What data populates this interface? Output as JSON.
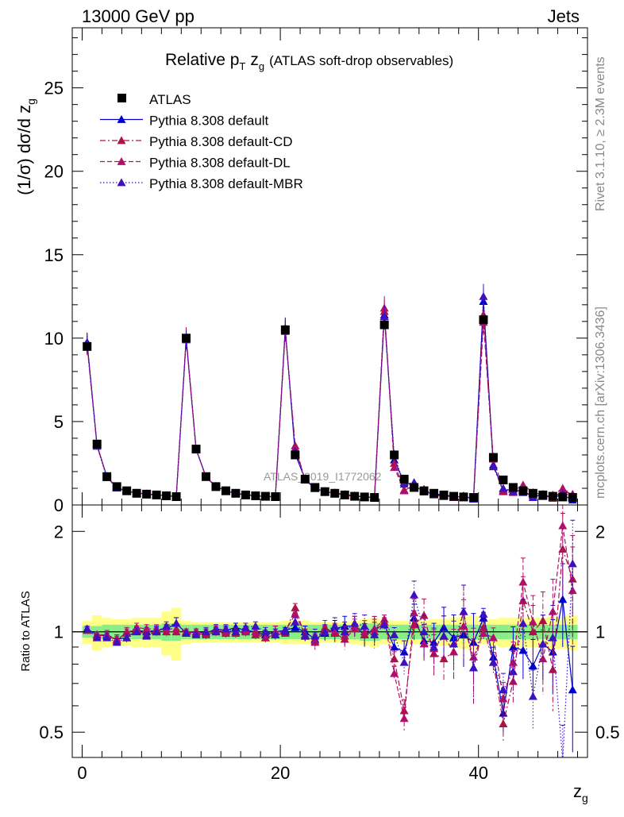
{
  "header": {
    "energy": "13000 GeV pp",
    "category": "Jets"
  },
  "side": {
    "rivet": "Rivet 3.1.10, ≥ 2.3M events",
    "mcplots": "mcplots.cern.ch [arXiv:1306.3436]"
  },
  "chart_data": [
    {
      "type": "scatter",
      "title_main": "Relative p",
      "title_sub": "T",
      "title_var": "z",
      "title_var_sub": "g",
      "title_rest": "(ATLAS soft-drop observables)",
      "ylabel": "(1/σ) dσ/d z",
      "ylabel_sub": "g",
      "watermark": "ATLAS_2019_I1772062",
      "xlim": [
        -1,
        51
      ],
      "ylim": [
        0,
        28.6
      ],
      "yticks": [
        0,
        5,
        10,
        15,
        20,
        25
      ],
      "colors": {
        "ATLAS": "#000000",
        "default": "#0000cc",
        "default-CD": "#b0104a",
        "default-DL": "#b0106a",
        "default-MBR": "#3d10c0"
      },
      "x": [
        0.5,
        1.5,
        2.5,
        3.5,
        4.5,
        5.5,
        6.5,
        7.5,
        8.5,
        9.5,
        10.5,
        11.5,
        12.5,
        13.5,
        14.5,
        15.5,
        16.5,
        17.5,
        18.5,
        19.5,
        20.5,
        21.5,
        22.5,
        23.5,
        24.5,
        25.5,
        26.5,
        27.5,
        28.5,
        29.5,
        30.5,
        31.5,
        32.5,
        33.5,
        34.5,
        35.5,
        36.5,
        37.5,
        38.5,
        39.5,
        40.5,
        41.5,
        42.5,
        43.5,
        44.5,
        45.5,
        46.5,
        47.5,
        48.5,
        49.5
      ],
      "series": [
        {
          "name": "ATLAS",
          "style": "marker-square",
          "values": [
            9.5,
            3.65,
            1.7,
            1.1,
            0.85,
            0.7,
            0.65,
            0.6,
            0.55,
            0.5,
            10.0,
            3.35,
            1.7,
            1.1,
            0.85,
            0.7,
            0.6,
            0.55,
            0.52,
            0.5,
            10.5,
            3.0,
            1.55,
            1.05,
            0.8,
            0.7,
            0.6,
            0.52,
            0.48,
            0.45,
            10.8,
            3.0,
            1.55,
            1.05,
            0.85,
            0.7,
            0.6,
            0.52,
            0.48,
            0.45,
            11.1,
            2.85,
            1.5,
            1.05,
            0.85,
            0.7,
            0.6,
            0.52,
            0.48,
            0.45
          ]
        },
        {
          "name": "Pythia 8.308 default",
          "style": "solid",
          "values": [
            9.75,
            3.6,
            1.68,
            1.05,
            0.83,
            0.72,
            0.66,
            0.62,
            0.56,
            0.52,
            9.95,
            3.35,
            1.68,
            1.12,
            0.86,
            0.71,
            0.61,
            0.55,
            0.51,
            0.5,
            10.6,
            3.05,
            1.55,
            1.0,
            0.79,
            0.72,
            0.63,
            0.54,
            0.47,
            0.46,
            11.4,
            2.7,
            1.35,
            1.15,
            0.8,
            0.65,
            0.62,
            0.5,
            0.47,
            0.42,
            12.2,
            2.4,
            0.85,
            0.95,
            0.75,
            0.55,
            0.55,
            0.45,
            0.6,
            0.3
          ]
        },
        {
          "name": "Pythia 8.308 default-CD",
          "style": "dashdot",
          "values": [
            9.55,
            3.55,
            1.66,
            1.03,
            0.85,
            0.71,
            0.64,
            0.6,
            0.55,
            0.5,
            10.05,
            3.33,
            1.66,
            1.1,
            0.84,
            0.69,
            0.6,
            0.54,
            0.5,
            0.49,
            10.4,
            3.55,
            1.5,
            0.98,
            0.82,
            0.69,
            0.57,
            0.53,
            0.47,
            0.45,
            11.6,
            2.5,
            0.9,
            1.1,
            0.95,
            0.6,
            0.5,
            0.45,
            0.55,
            0.35,
            11.4,
            2.3,
            0.8,
            0.75,
            1.05,
            0.7,
            0.65,
            0.4,
            0.85,
            0.65
          ]
        },
        {
          "name": "Pythia 8.308 default-DL",
          "style": "dash",
          "values": [
            9.6,
            3.58,
            1.67,
            1.05,
            0.84,
            0.72,
            0.66,
            0.61,
            0.56,
            0.51,
            10.0,
            3.36,
            1.68,
            1.11,
            0.85,
            0.7,
            0.6,
            0.55,
            0.5,
            0.5,
            10.45,
            3.4,
            1.52,
            0.99,
            0.8,
            0.7,
            0.58,
            0.54,
            0.48,
            0.46,
            11.8,
            2.25,
            0.85,
            1.2,
            0.78,
            0.62,
            0.58,
            0.45,
            0.5,
            0.38,
            10.95,
            2.75,
            0.95,
            0.85,
            1.2,
            0.75,
            0.5,
            0.6,
            1.0,
            0.6
          ]
        },
        {
          "name": "Pythia 8.308 default-MBR",
          "style": "dotted",
          "values": [
            9.7,
            3.52,
            1.64,
            1.02,
            0.82,
            0.7,
            0.63,
            0.6,
            0.57,
            0.53,
            9.9,
            3.3,
            1.7,
            1.1,
            0.87,
            0.7,
            0.62,
            0.57,
            0.52,
            0.49,
            10.5,
            3.2,
            1.5,
            1.02,
            0.8,
            0.73,
            0.6,
            0.55,
            0.5,
            0.44,
            11.3,
            2.95,
            1.25,
            1.35,
            0.85,
            0.63,
            0.58,
            0.48,
            0.55,
            0.35,
            12.5,
            2.3,
            1.0,
            0.8,
            0.9,
            0.45,
            0.55,
            0.5,
            0.7,
            0.55
          ]
        }
      ],
      "legend": [
        "ATLAS",
        "Pythia 8.308 default",
        "Pythia 8.308 default-CD",
        "Pythia 8.308 default-DL",
        "Pythia 8.308 default-MBR"
      ],
      "legend_position": "top-left"
    },
    {
      "type": "scatter",
      "ylabel": "Ratio to ATLAS",
      "xlabel": "z",
      "xlabel_sub": "g",
      "scale": "log",
      "ylim": [
        0.42,
        2.4
      ],
      "yticks": [
        0.5,
        1,
        2
      ],
      "xticks": [
        0,
        20,
        40
      ],
      "band_inner": [
        0.04,
        0.04,
        0.05,
        0.05,
        0.05,
        0.05,
        0.05,
        0.05,
        0.06,
        0.06,
        0.05,
        0.05,
        0.05,
        0.05,
        0.05,
        0.05,
        0.05,
        0.05,
        0.05,
        0.05,
        0.05,
        0.05,
        0.05,
        0.05,
        0.05,
        0.05,
        0.05,
        0.05,
        0.06,
        0.06,
        0.05,
        0.05,
        0.05,
        0.05,
        0.05,
        0.05,
        0.05,
        0.05,
        0.05,
        0.05,
        0.05,
        0.05,
        0.05,
        0.05,
        0.05,
        0.05,
        0.05,
        0.05,
        0.05,
        0.05
      ],
      "band_outer": [
        0.08,
        0.12,
        0.1,
        0.09,
        0.09,
        0.1,
        0.1,
        0.1,
        0.15,
        0.18,
        0.08,
        0.07,
        0.07,
        0.07,
        0.07,
        0.07,
        0.07,
        0.07,
        0.07,
        0.07,
        0.08,
        0.08,
        0.08,
        0.07,
        0.07,
        0.07,
        0.07,
        0.08,
        0.09,
        0.1,
        0.08,
        0.08,
        0.08,
        0.08,
        0.08,
        0.09,
        0.09,
        0.1,
        0.11,
        0.12,
        0.08,
        0.09,
        0.1,
        0.1,
        0.1,
        0.1,
        0.1,
        0.11,
        0.11,
        0.12
      ],
      "ratios": [
        {
          "name": "Pythia 8.308 default",
          "values": [
            1.02,
            0.98,
            0.97,
            0.95,
            0.96,
            1.01,
            1.0,
            1.01,
            1.02,
            1.06,
            0.99,
            1.0,
            0.99,
            1.02,
            1.01,
            1.03,
            1.01,
            1.0,
            0.98,
            1.0,
            1.01,
            1.03,
            1.0,
            0.95,
            0.99,
            1.02,
            1.04,
            1.04,
            0.98,
            1.02,
            1.05,
            0.9,
            0.87,
            1.1,
            0.94,
            0.93,
            1.03,
            0.96,
            0.98,
            0.93,
            1.1,
            0.84,
            0.57,
            0.9,
            0.88,
            0.79,
            0.92,
            0.87,
            1.25,
            0.67
          ],
          "errors": [
            0.02,
            0.02,
            0.03,
            0.03,
            0.03,
            0.03,
            0.03,
            0.03,
            0.03,
            0.04,
            0.02,
            0.02,
            0.03,
            0.03,
            0.03,
            0.03,
            0.03,
            0.03,
            0.03,
            0.04,
            0.02,
            0.03,
            0.04,
            0.05,
            0.05,
            0.06,
            0.07,
            0.07,
            0.08,
            0.09,
            0.03,
            0.05,
            0.08,
            0.1,
            0.12,
            0.14,
            0.15,
            0.17,
            0.2,
            0.22,
            0.04,
            0.07,
            0.12,
            0.15,
            0.18,
            0.2,
            0.22,
            0.25,
            0.28,
            0.35
          ]
        },
        {
          "name": "Pythia 8.308 default-CD",
          "values": [
            1.01,
            0.97,
            0.98,
            0.94,
            1.0,
            1.01,
            0.98,
            1.0,
            1.0,
            1.0,
            1.0,
            0.99,
            0.98,
            1.0,
            0.99,
            0.99,
            1.0,
            0.98,
            0.96,
            0.98,
            0.99,
            1.18,
            0.97,
            0.93,
            1.03,
            0.99,
            0.95,
            1.02,
            0.98,
            1.0,
            1.07,
            0.83,
            0.58,
            1.05,
            1.12,
            0.86,
            0.83,
            0.87,
            1.15,
            0.78,
            1.03,
            0.81,
            0.53,
            0.71,
            1.24,
            1.0,
            1.08,
            0.77,
            1.77,
            1.44
          ],
          "errors": [
            0.02,
            0.02,
            0.03,
            0.03,
            0.03,
            0.03,
            0.03,
            0.03,
            0.03,
            0.04,
            0.02,
            0.02,
            0.03,
            0.03,
            0.03,
            0.03,
            0.03,
            0.03,
            0.03,
            0.04,
            0.02,
            0.03,
            0.04,
            0.05,
            0.05,
            0.06,
            0.07,
            0.07,
            0.08,
            0.09,
            0.03,
            0.05,
            0.08,
            0.1,
            0.12,
            0.14,
            0.15,
            0.17,
            0.2,
            0.22,
            0.04,
            0.07,
            0.12,
            0.15,
            0.18,
            0.2,
            0.22,
            0.25,
            0.28,
            0.35
          ]
        },
        {
          "name": "Pythia 8.308 default-DL",
          "values": [
            1.01,
            0.98,
            0.98,
            0.95,
            0.99,
            1.03,
            1.02,
            1.02,
            1.02,
            1.02,
            1.0,
            1.0,
            0.99,
            1.01,
            1.0,
            1.0,
            1.0,
            1.0,
            0.96,
            1.0,
            1.0,
            1.13,
            0.98,
            0.94,
            1.0,
            1.0,
            0.97,
            1.04,
            1.0,
            1.02,
            1.09,
            0.75,
            0.55,
            1.14,
            0.92,
            0.89,
            0.97,
            0.87,
            1.04,
            0.84,
            0.99,
            0.96,
            0.63,
            0.81,
            1.41,
            1.07,
            0.83,
            1.15,
            2.08,
            1.33
          ],
          "errors": [
            0.02,
            0.02,
            0.03,
            0.03,
            0.03,
            0.03,
            0.03,
            0.03,
            0.03,
            0.04,
            0.02,
            0.02,
            0.03,
            0.03,
            0.03,
            0.03,
            0.03,
            0.03,
            0.03,
            0.04,
            0.02,
            0.03,
            0.04,
            0.05,
            0.05,
            0.06,
            0.07,
            0.07,
            0.08,
            0.09,
            0.03,
            0.05,
            0.08,
            0.1,
            0.12,
            0.14,
            0.15,
            0.17,
            0.2,
            0.22,
            0.04,
            0.07,
            0.12,
            0.15,
            0.18,
            0.2,
            0.22,
            0.25,
            0.28,
            0.35
          ]
        },
        {
          "name": "Pythia 8.308 default-MBR",
          "values": [
            1.02,
            0.96,
            0.96,
            0.93,
            0.96,
            1.0,
            0.97,
            1.0,
            1.04,
            1.06,
            0.99,
            0.98,
            1.0,
            1.0,
            1.02,
            1.0,
            1.03,
            1.04,
            1.0,
            0.98,
            1.0,
            1.07,
            0.97,
            0.97,
            1.0,
            1.04,
            1.0,
            1.06,
            1.04,
            0.98,
            1.05,
            0.98,
            0.81,
            1.29,
            1.0,
            0.9,
            0.97,
            0.92,
            1.15,
            0.78,
            1.13,
            0.81,
            0.67,
            0.76,
            1.06,
            0.64,
            0.92,
            0.96,
            0.41,
            1.6
          ],
          "errors": [
            0.02,
            0.02,
            0.03,
            0.03,
            0.03,
            0.03,
            0.03,
            0.03,
            0.03,
            0.04,
            0.02,
            0.02,
            0.03,
            0.03,
            0.03,
            0.03,
            0.03,
            0.03,
            0.03,
            0.04,
            0.02,
            0.03,
            0.04,
            0.05,
            0.05,
            0.06,
            0.07,
            0.07,
            0.08,
            0.09,
            0.03,
            0.05,
            0.08,
            0.1,
            0.12,
            0.14,
            0.15,
            0.17,
            0.2,
            0.22,
            0.04,
            0.07,
            0.12,
            0.15,
            0.18,
            0.2,
            0.22,
            0.25,
            0.28,
            0.35
          ]
        }
      ]
    }
  ]
}
